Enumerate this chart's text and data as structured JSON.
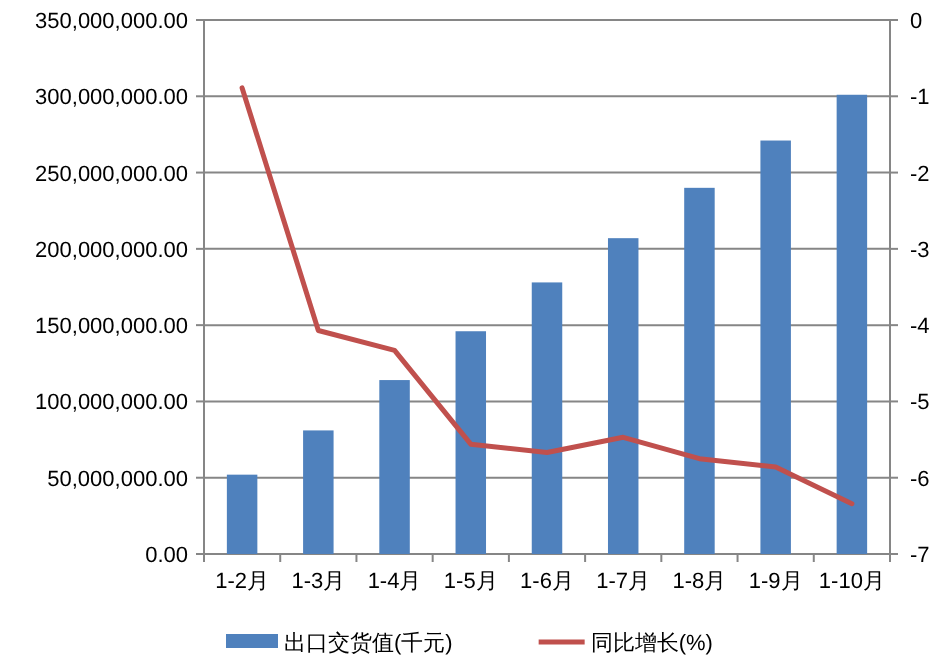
{
  "chart_data": {
    "type": "bar",
    "categories": [
      "1-2月",
      "1-3月",
      "1-4月",
      "1-5月",
      "1-6月",
      "1-7月",
      "1-8月",
      "1-9月",
      "1-10月"
    ],
    "series": [
      {
        "name": "出口交货值(千元)",
        "color": "#4f81bd",
        "values": [
          52000000,
          81000000,
          114000000,
          146000000,
          178000000,
          207000000,
          240000000,
          271000000,
          301000000
        ]
      },
      {
        "name": "同比增长(%)",
        "type": "line",
        "axis": "y2",
        "color": "#c0504d",
        "values": [
          -0.89,
          -4.07,
          -4.33,
          -5.56,
          -5.67,
          -5.47,
          -5.75,
          -5.86,
          -6.34
        ]
      }
    ],
    "ylim": [
      0,
      350000000
    ],
    "yticks": [
      {
        "value": 0,
        "label": "0.00"
      },
      {
        "value": 50000000,
        "label": "50,000,000.00"
      },
      {
        "value": 100000000,
        "label": "100,000,000.00"
      },
      {
        "value": 150000000,
        "label": "150,000,000.00"
      },
      {
        "value": 200000000,
        "label": "200,000,000.00"
      },
      {
        "value": 250000000,
        "label": "250,000,000.00"
      },
      {
        "value": 300000000,
        "label": "300,000,000.00"
      },
      {
        "value": 350000000,
        "label": "350,000,000.00"
      }
    ],
    "y2lim": [
      -7,
      0
    ],
    "y2ticks": [
      0,
      -1,
      -2,
      -3,
      -4,
      -5,
      -6,
      -7
    ],
    "grid": "y",
    "legend": "bottom",
    "marker": "none"
  }
}
